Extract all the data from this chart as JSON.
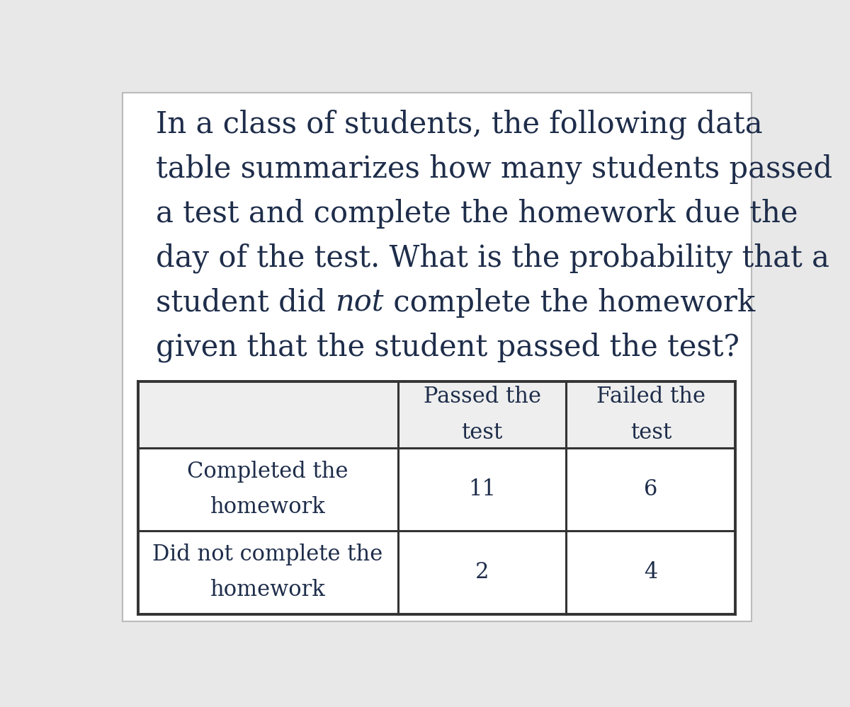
{
  "background_color": "#e8e8e8",
  "panel_color": "#ffffff",
  "text_color": "#1e2d4a",
  "header_bg": "#eeeeee",
  "cell_bg": "#ffffff",
  "border_color": "#333333",
  "col_headers": [
    "Passed the\ntest",
    "Failed the\ntest"
  ],
  "row_headers": [
    "Completed the\nhomework",
    "Did not complete the\nhomework"
  ],
  "data": [
    [
      11,
      6
    ],
    [
      2,
      4
    ]
  ],
  "font_size_question": 30,
  "font_size_table_header": 22,
  "font_size_table_data": 22,
  "line1": "In a class of students, the following data",
  "line2": "table summarizes how many students passed",
  "line3": "a test and complete the homework due the",
  "line4": "day of the test. What is the probability that a",
  "line5_pre": "student did ",
  "line5_italic": "not",
  "line5_post": " complete the homework",
  "line6": "given that the student passed the test?"
}
